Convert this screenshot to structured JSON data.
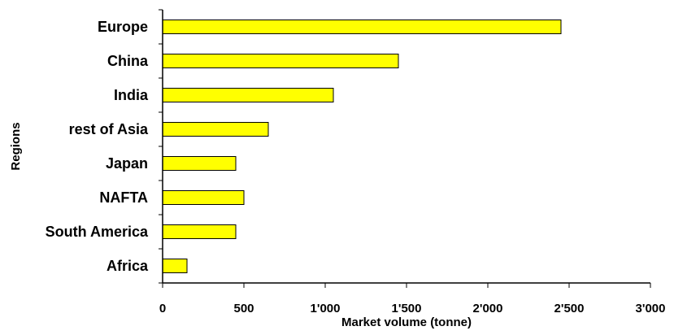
{
  "chart_data": {
    "type": "bar",
    "orientation": "horizontal",
    "title": "",
    "xlabel": "Market volume (tonne)",
    "ylabel": "Regions",
    "categories": [
      "Europe",
      "China",
      "India",
      "rest of Asia",
      "Japan",
      "NAFTA",
      "South America",
      "Africa"
    ],
    "values": [
      2450,
      1450,
      1050,
      650,
      450,
      500,
      450,
      150
    ],
    "xlim": [
      0,
      3000
    ],
    "x_ticks": [
      0,
      500,
      1000,
      1500,
      2000,
      2500,
      3000
    ],
    "x_tick_labels": [
      "0",
      "500",
      "1'000",
      "1'500",
      "2'000",
      "2'500",
      "3'000"
    ],
    "grid": false,
    "legend": "none",
    "colors": {
      "bar_fill": "#FFFF00",
      "bar_stroke": "#000000",
      "axis": "#000000"
    }
  }
}
